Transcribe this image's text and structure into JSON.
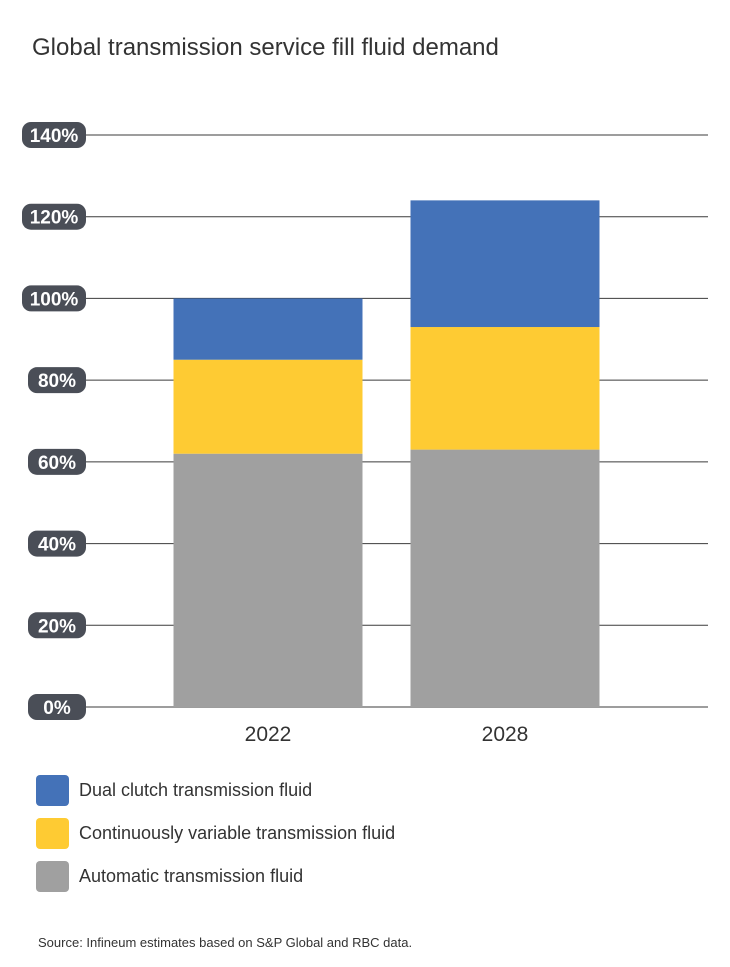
{
  "chart_data": {
    "type": "bar",
    "stacked": true,
    "title": "Global transmission service fill fluid demand",
    "categories": [
      "2022",
      "2028"
    ],
    "series": [
      {
        "name": "Automatic transmission fluid",
        "values": [
          62,
          63
        ],
        "color": "#a0a0a0"
      },
      {
        "name": "Continuously variable transmission fluid",
        "values": [
          23,
          30
        ],
        "color": "#fecb33"
      },
      {
        "name": "Dual clutch transmission fluid",
        "values": [
          15,
          31
        ],
        "color": "#4472b8"
      }
    ],
    "y_ticks": [
      "0%",
      "20%",
      "40%",
      "60%",
      "80%",
      "100%",
      "120%",
      "140%"
    ],
    "ylim": [
      0,
      140
    ],
    "grid": true,
    "legend_position": "bottom-left",
    "legend_order": [
      2,
      1,
      0
    ],
    "source": "Source: Infineum estimates based on S&P Global and RBC data."
  }
}
